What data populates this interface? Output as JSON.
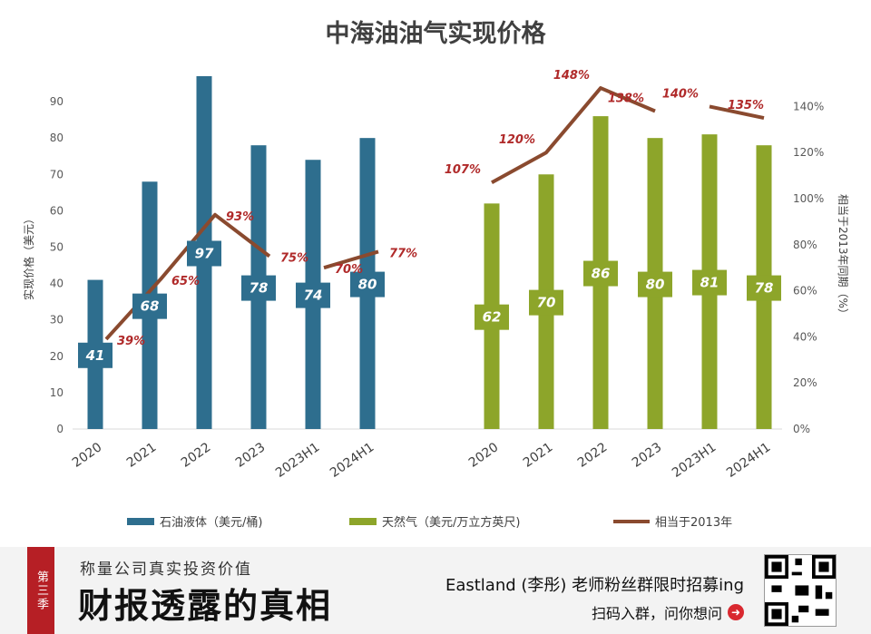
{
  "chart_data": {
    "type": "bar",
    "title": "中海油油气实现价格",
    "ylabel_left": "实现价格（美元）",
    "ylabel_right": "相当于2013年同期（%）",
    "left_ylim": [
      0,
      95
    ],
    "left_ticks": [
      "0",
      "10",
      "20",
      "30",
      "40",
      "50",
      "60",
      "70",
      "80",
      "90"
    ],
    "right_ylim": [
      0,
      1.5
    ],
    "right_ticks": [
      "0%",
      "20%",
      "40%",
      "60%",
      "80%",
      "100%",
      "120%",
      "140%"
    ],
    "groups": [
      {
        "name": "oil",
        "categories": [
          "2020",
          "2021",
          "2022",
          "2023",
          "2023H1",
          "2024H1"
        ],
        "values": [
          41,
          68,
          97,
          78,
          74,
          80
        ],
        "value_labels": [
          "41",
          "68",
          "97",
          "78",
          "74",
          "80"
        ],
        "pct": [
          0.39,
          0.65,
          0.93,
          0.75,
          0.7,
          0.77
        ],
        "pct_labels": [
          "39%",
          "65%",
          "93%",
          "75%",
          "70%",
          "77%"
        ]
      },
      {
        "name": "gas",
        "categories": [
          "2020",
          "2021",
          "2022",
          "2023",
          "2023H1",
          "2024H1"
        ],
        "values": [
          62,
          70,
          86,
          80,
          81,
          78
        ],
        "value_labels": [
          "62",
          "70",
          "86",
          "80",
          "81",
          "78"
        ],
        "pct": [
          1.07,
          1.2,
          1.48,
          1.38,
          1.4,
          1.35
        ],
        "pct_labels": [
          "107%",
          "120%",
          "148%",
          "138%",
          "140%",
          "135%"
        ]
      }
    ],
    "legend": {
      "position": "bottom",
      "items": [
        {
          "label": "石油液体（美元/桶)",
          "color": "#2e6e8e",
          "kind": "bar"
        },
        {
          "label": "天然气（美元/万立方英尺)",
          "color": "#8da52a",
          "kind": "bar"
        },
        {
          "label": "相当于2013年",
          "color": "#8a4a2f",
          "kind": "line"
        }
      ]
    }
  },
  "banner": {
    "tag": "第三季",
    "subtitle": "称量公司真实投资价值",
    "main": "财报透露的真相",
    "right_line1": "Eastland (李彤) 老师粉丝群限时招募ing",
    "right_line2": "扫码入群，问你想问",
    "arrow": "➜"
  }
}
